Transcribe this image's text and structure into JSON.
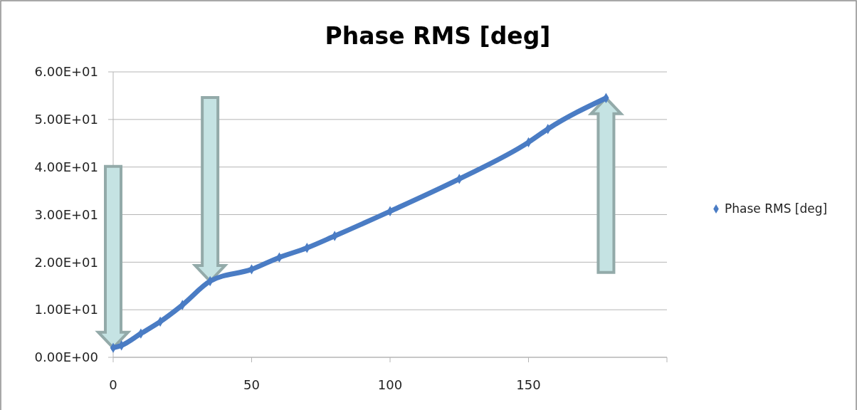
{
  "chart_data": {
    "type": "line",
    "title": "Phase RMS [deg]",
    "x": [
      0,
      3,
      10,
      17,
      25,
      35,
      50,
      60,
      70,
      80,
      100,
      125,
      150,
      157,
      178
    ],
    "series": [
      {
        "name": "Phase RMS [deg]",
        "color": "#4a7cc4",
        "values": [
          2,
          2.5,
          5,
          7.5,
          11,
          16,
          18.5,
          21,
          23,
          25.5,
          30.7,
          37.5,
          45.2,
          48,
          54.5
        ]
      }
    ],
    "xlim": [
      0,
      200
    ],
    "xticks": [
      0,
      50,
      100,
      150
    ],
    "ylim": [
      0,
      60
    ],
    "yticks": [
      {
        "value": 0,
        "label": "0.00E+00"
      },
      {
        "value": 10,
        "label": "1.00E+01"
      },
      {
        "value": 20,
        "label": "2.00E+01"
      },
      {
        "value": 30,
        "label": "3.00E+01"
      },
      {
        "value": 40,
        "label": "4.00E+01"
      },
      {
        "value": 50,
        "label": "5.00E+01"
      },
      {
        "value": 60,
        "label": "6.00E+01"
      }
    ],
    "grid": "y",
    "legend": "right",
    "marker": "diamond",
    "line_style": "solid"
  }
}
